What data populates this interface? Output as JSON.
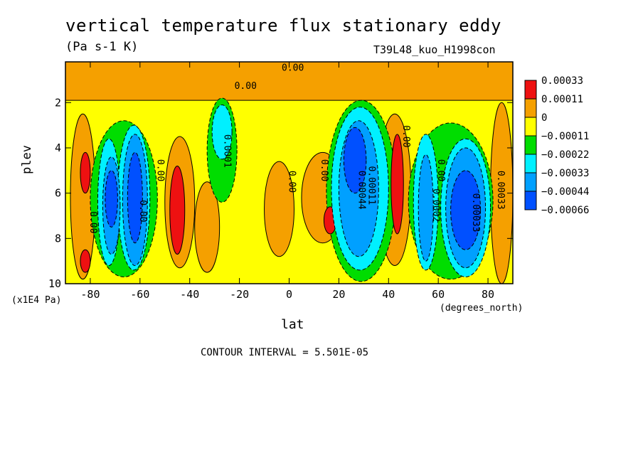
{
  "chart_data": {
    "type": "contour",
    "title": "vertical temperature flux stationary eddy",
    "units": "(Pa s-1 K)",
    "run_id": "T39L48_kuo_H1998con",
    "xlabel": "lat",
    "x_unit": "(degrees_north)",
    "ylabel": "plev",
    "y_unit": "(x1E4 Pa)",
    "xlim": [
      -90,
      90
    ],
    "ylim": [
      10,
      0.2
    ],
    "x_ticks": [
      "-80",
      "-60",
      "-40",
      "-20",
      "0",
      "20",
      "40",
      "60",
      "80"
    ],
    "y_ticks": [
      "2",
      "4",
      "6",
      "8",
      "10"
    ],
    "contour_interval": "CONTOUR INTERVAL = 5.501E-05",
    "legend": [
      {
        "label": "0.00033",
        "color": "#ee1111"
      },
      {
        "label": "0.00011",
        "color": "#f5a000"
      },
      {
        "label": "0",
        "color": "#ffff00"
      },
      {
        "label": "−0.00011",
        "color": "#00dd00"
      },
      {
        "label": "−0.00022",
        "color": "#00f0ff"
      },
      {
        "label": "−0.00033",
        "color": "#00a0ff"
      },
      {
        "label": "−0.00044",
        "color": "#0050ff"
      },
      {
        "label": "−0.00066",
        "color": ""
      }
    ],
    "contour_labels": [
      "0.00",
      "0.00",
      "0.0001",
      "0.00",
      "0.00",
      "0.00",
      "0.00",
      "0.00",
      "0.00011",
      "0.00",
      "0.00044",
      "0.0002",
      "0.00033",
      "0.00033",
      "0.00"
    ],
    "regions": [
      {
        "level": 1,
        "shape": "orange",
        "lat": [
          -90,
          90
        ],
        "plev": [
          0.2,
          1.9
        ]
      },
      {
        "level": 1,
        "lat": [
          -88,
          -78
        ],
        "plev": [
          2.5,
          9.8
        ]
      },
      {
        "level": 1,
        "lat": [
          -50,
          -38
        ],
        "plev": [
          3.5,
          9.3
        ]
      },
      {
        "level": 1,
        "lat": [
          -38,
          -28
        ],
        "plev": [
          5.5,
          9.5
        ]
      },
      {
        "level": 1,
        "lat": [
          -10,
          2
        ],
        "plev": [
          4.6,
          8.8
        ]
      },
      {
        "level": 1,
        "lat": [
          5,
          22
        ],
        "plev": [
          4.2,
          8.2
        ]
      },
      {
        "level": 1,
        "lat": [
          36,
          49
        ],
        "plev": [
          2.5,
          9.2
        ]
      },
      {
        "level": 1,
        "lat": [
          81,
          90
        ],
        "plev": [
          2.0,
          10.0
        ]
      },
      {
        "level": 2,
        "lat": [
          -84,
          -80
        ],
        "plev": [
          4.2,
          6.0
        ]
      },
      {
        "level": 2,
        "lat": [
          -84,
          -80
        ],
        "plev": [
          8.5,
          9.5
        ]
      },
      {
        "level": 2,
        "lat": [
          -48,
          -42
        ],
        "plev": [
          4.8,
          8.7
        ]
      },
      {
        "level": 2,
        "lat": [
          14,
          19
        ],
        "plev": [
          6.6,
          7.8
        ]
      },
      {
        "level": 2,
        "lat": [
          41,
          46
        ],
        "plev": [
          3.4,
          7.8
        ]
      },
      {
        "level": -1,
        "lat": [
          -80,
          -53
        ],
        "plev": [
          2.8,
          9.7
        ]
      },
      {
        "level": -1,
        "lat": [
          -33,
          -21
        ],
        "plev": [
          1.8,
          6.4
        ]
      },
      {
        "level": -1,
        "lat": [
          15,
          43
        ],
        "plev": [
          1.9,
          9.9
        ]
      },
      {
        "level": -1,
        "lat": [
          48,
          82
        ],
        "plev": [
          2.9,
          9.8
        ]
      },
      {
        "level": -2,
        "lat": [
          -77,
          -68
        ],
        "plev": [
          3.6,
          9.2
        ]
      },
      {
        "level": -2,
        "lat": [
          -69,
          -56
        ],
        "plev": [
          3.0,
          9.4
        ]
      },
      {
        "level": -2,
        "lat": [
          -31,
          -23
        ],
        "plev": [
          2.1,
          4.5
        ]
      },
      {
        "level": -2,
        "lat": [
          17,
          40
        ],
        "plev": [
          2.2,
          9.4
        ]
      },
      {
        "level": -2,
        "lat": [
          50,
          60
        ],
        "plev": [
          3.4,
          9.4
        ]
      },
      {
        "level": -2,
        "lat": [
          61,
          81
        ],
        "plev": [
          3.6,
          9.7
        ]
      },
      {
        "level": -3,
        "lat": [
          -75,
          -68
        ],
        "plev": [
          4.4,
          8.7
        ]
      },
      {
        "level": -3,
        "lat": [
          -67,
          -57
        ],
        "plev": [
          3.4,
          9.2
        ]
      },
      {
        "level": -3,
        "lat": [
          20,
          36
        ],
        "plev": [
          2.8,
          8.8
        ]
      },
      {
        "level": -3,
        "lat": [
          52,
          58
        ],
        "plev": [
          4.3,
          9.0
        ]
      },
      {
        "level": -3,
        "lat": [
          63,
          79
        ],
        "plev": [
          4.0,
          9.3
        ]
      },
      {
        "level": -4,
        "lat": [
          -74,
          -69
        ],
        "plev": [
          5.0,
          7.5
        ]
      },
      {
        "level": -4,
        "lat": [
          -65,
          -59
        ],
        "plev": [
          4.2,
          8.2
        ]
      },
      {
        "level": -4,
        "lat": [
          22,
          31
        ],
        "plev": [
          3.1,
          6.0
        ]
      },
      {
        "level": -4,
        "lat": [
          65,
          77
        ],
        "plev": [
          5.0,
          8.5
        ]
      }
    ]
  }
}
